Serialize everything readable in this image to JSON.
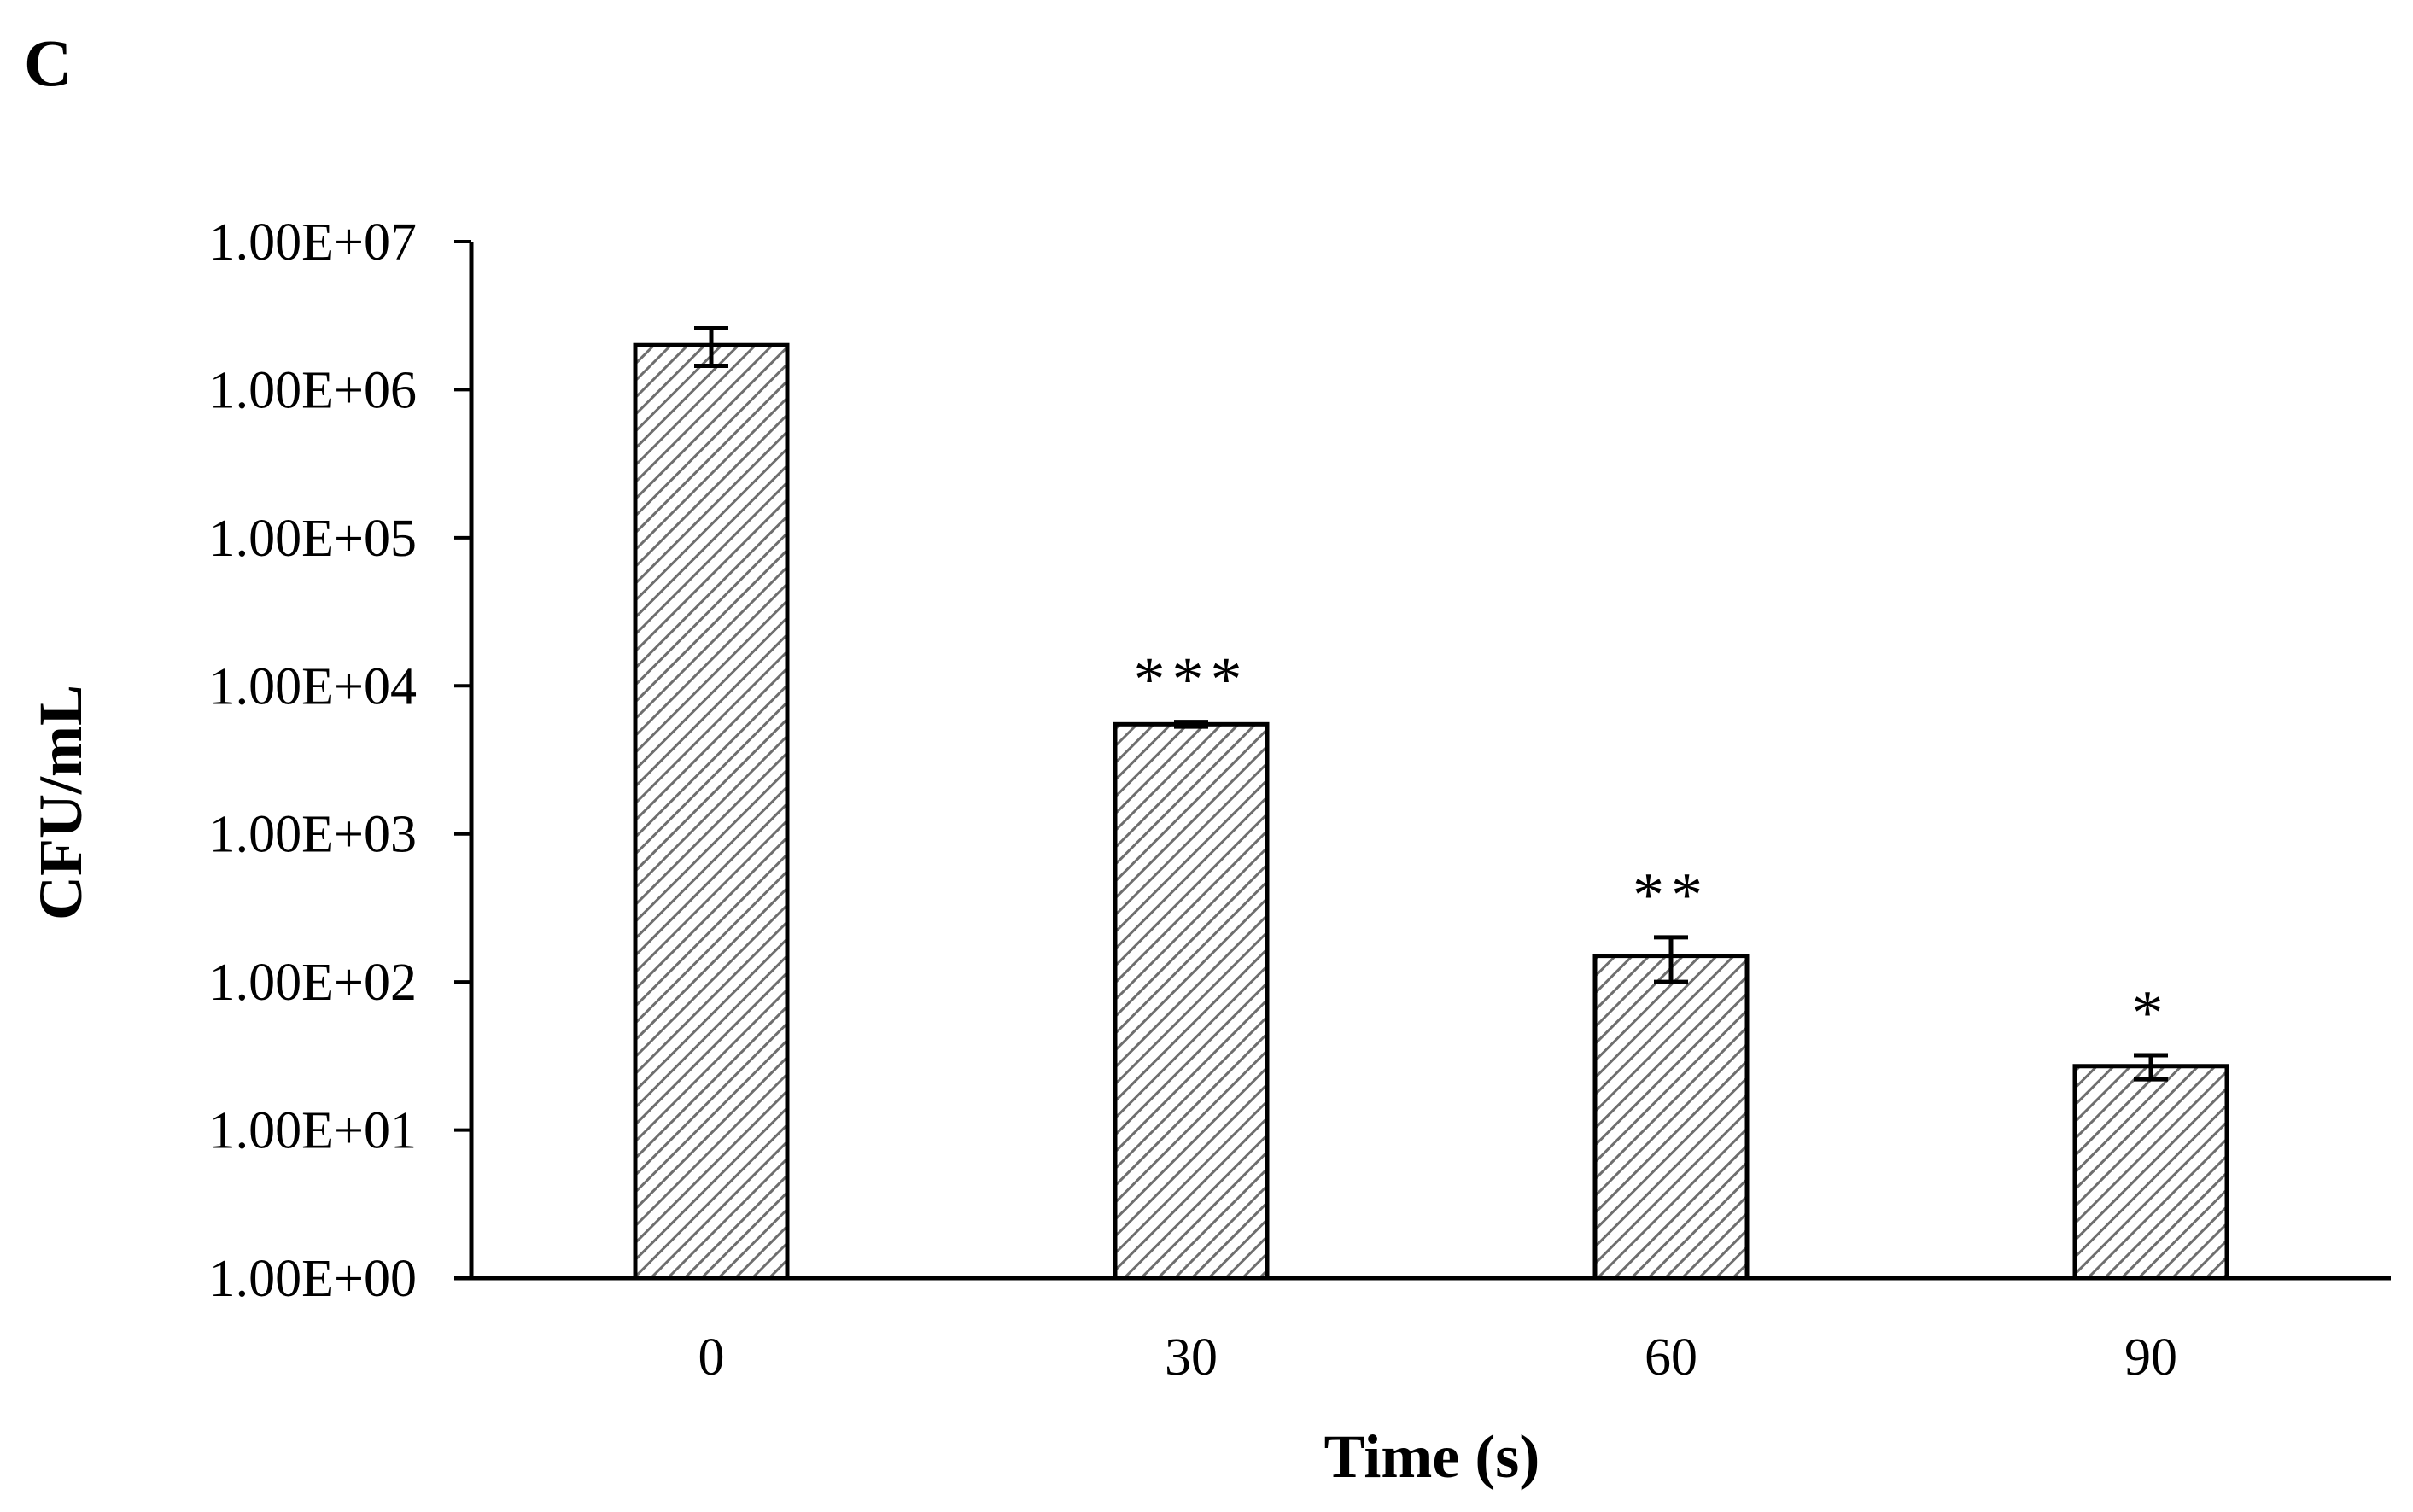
{
  "panel_label": "C",
  "chart_data": {
    "type": "bar",
    "title": "",
    "xlabel": "Time (s)",
    "ylabel": "CFU/mL",
    "yscale": "log",
    "ylim": [
      1,
      10000000
    ],
    "categories": [
      "0",
      "30",
      "60",
      "90"
    ],
    "values": [
      2000000,
      5500,
      150,
      27
    ],
    "error_low": [
      1450000,
      5300,
      100,
      22
    ],
    "error_high": [
      2600000,
      5700,
      200,
      32
    ],
    "significance": [
      "",
      "***",
      "**",
      "*"
    ],
    "y_tick_values": [
      1,
      10,
      100,
      1000,
      10000,
      100000,
      1000000,
      10000000
    ],
    "y_tick_labels": [
      "1.00E+00",
      "1.00E+01",
      "1.00E+02",
      "1.00E+03",
      "1.00E+04",
      "1.00E+05",
      "1.00E+06",
      "1.00E+07"
    ],
    "fill": "diagonal hatch",
    "bar_color": "#000000",
    "legend": "none",
    "grid": false
  }
}
